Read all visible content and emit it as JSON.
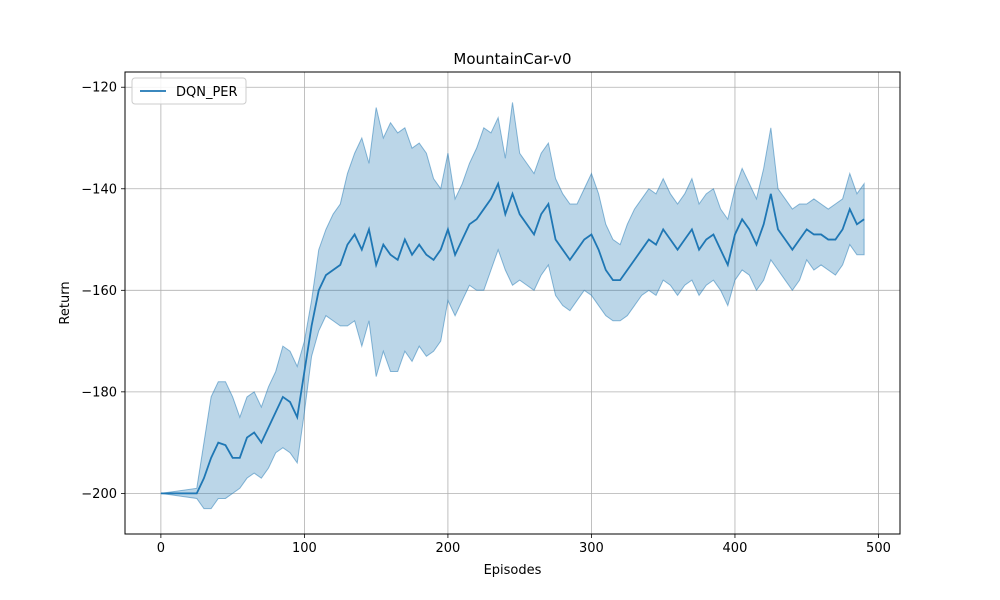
{
  "chart_data": {
    "type": "line",
    "title": "MountainCar-v0",
    "xlabel": "Episodes",
    "ylabel": "Return",
    "xlim": [
      -25,
      515
    ],
    "ylim": [
      -208,
      -117
    ],
    "xticks": [
      0,
      100,
      200,
      300,
      400,
      500
    ],
    "yticks": [
      -200,
      -180,
      -160,
      -140,
      -120
    ],
    "xtick_labels": [
      "0",
      "100",
      "200",
      "300",
      "400",
      "500"
    ],
    "ytick_labels": [
      "−200",
      "−180",
      "−160",
      "−140",
      "−120"
    ],
    "grid": true,
    "legend_position": "top-left",
    "colors": {
      "line": "#1f77b4",
      "band": "#1f77b4"
    },
    "series": [
      {
        "name": "DQN_PER",
        "x": [
          0,
          25,
          30,
          35,
          40,
          45,
          50,
          55,
          60,
          65,
          70,
          75,
          80,
          85,
          90,
          95,
          100,
          105,
          110,
          115,
          120,
          125,
          130,
          135,
          140,
          145,
          150,
          155,
          160,
          165,
          170,
          175,
          180,
          185,
          190,
          195,
          200,
          205,
          210,
          215,
          220,
          225,
          230,
          235,
          240,
          245,
          250,
          255,
          260,
          265,
          270,
          275,
          280,
          285,
          290,
          295,
          300,
          305,
          310,
          315,
          320,
          325,
          330,
          335,
          340,
          345,
          350,
          355,
          360,
          365,
          370,
          375,
          380,
          385,
          390,
          395,
          400,
          405,
          410,
          415,
          420,
          425,
          430,
          435,
          440,
          445,
          450,
          455,
          460,
          465,
          470,
          475,
          480,
          485,
          490
        ],
        "mean": [
          -200,
          -200,
          -197,
          -193,
          -190,
          -190.5,
          -193,
          -193,
          -189,
          -188,
          -190,
          -187,
          -184,
          -181,
          -182,
          -185,
          -176,
          -167,
          -160,
          -157,
          -156,
          -155,
          -151,
          -149,
          -152,
          -148,
          -155,
          -151,
          -153,
          -154,
          -150,
          -153,
          -151,
          -153,
          -154,
          -152,
          -148,
          -153,
          -150,
          -147,
          -146,
          -144,
          -142,
          -139,
          -145,
          -141,
          -145,
          -147,
          -149,
          -145,
          -143,
          -150,
          -152,
          -154,
          -152,
          -150,
          -149,
          -152,
          -156,
          -158,
          -158,
          -156,
          -154,
          -152,
          -150,
          -151,
          -148,
          -150,
          -152,
          -150,
          -148,
          -152,
          -150,
          -149,
          -152,
          -155,
          -149,
          -146,
          -148,
          -151,
          -147,
          -141,
          -148,
          -150,
          -152,
          -150,
          -148,
          -149,
          -149,
          -150,
          -150,
          -148,
          -144,
          -147,
          -146
        ],
        "upper": [
          -200,
          -199,
          -190,
          -181,
          -178,
          -178,
          -181,
          -185,
          -181,
          -180,
          -183,
          -179,
          -176,
          -171,
          -172,
          -175,
          -170,
          -162,
          -152,
          -148,
          -145,
          -143,
          -137,
          -133,
          -130,
          -135,
          -124,
          -130,
          -127,
          -129,
          -128,
          -132,
          -131,
          -133,
          -138,
          -140,
          -133,
          -142,
          -139,
          -135,
          -132,
          -128,
          -129,
          -126,
          -134,
          -123,
          -133,
          -135,
          -137,
          -133,
          -131,
          -138,
          -141,
          -143,
          -143,
          -140,
          -137,
          -141,
          -147,
          -150,
          -151,
          -147,
          -144,
          -142,
          -140,
          -141,
          -138,
          -141,
          -143,
          -141,
          -138,
          -143,
          -141,
          -140,
          -144,
          -146,
          -140,
          -136,
          -139,
          -142,
          -136,
          -128,
          -140,
          -142,
          -144,
          -143,
          -143,
          -142,
          -143,
          -144,
          -143,
          -142,
          -137,
          -141,
          -139
        ],
        "lower": [
          -200,
          -201,
          -203,
          -203,
          -201,
          -201,
          -200,
          -199,
          -197,
          -196,
          -197,
          -195,
          -192,
          -191,
          -192,
          -194,
          -184,
          -173,
          -168,
          -165,
          -166,
          -167,
          -167,
          -166,
          -171,
          -166,
          -177,
          -172,
          -176,
          -176,
          -172,
          -174,
          -171,
          -173,
          -172,
          -170,
          -162,
          -165,
          -162,
          -159,
          -160,
          -160,
          -156,
          -152,
          -156,
          -159,
          -158,
          -159,
          -160,
          -157,
          -155,
          -161,
          -163,
          -164,
          -162,
          -160,
          -161,
          -163,
          -165,
          -166,
          -166,
          -165,
          -163,
          -161,
          -160,
          -161,
          -158,
          -159,
          -161,
          -159,
          -158,
          -161,
          -159,
          -158,
          -160,
          -163,
          -158,
          -156,
          -157,
          -160,
          -158,
          -154,
          -156,
          -158,
          -160,
          -158,
          -154,
          -156,
          -155,
          -156,
          -157,
          -155,
          -151,
          -153,
          -153
        ]
      }
    ]
  }
}
